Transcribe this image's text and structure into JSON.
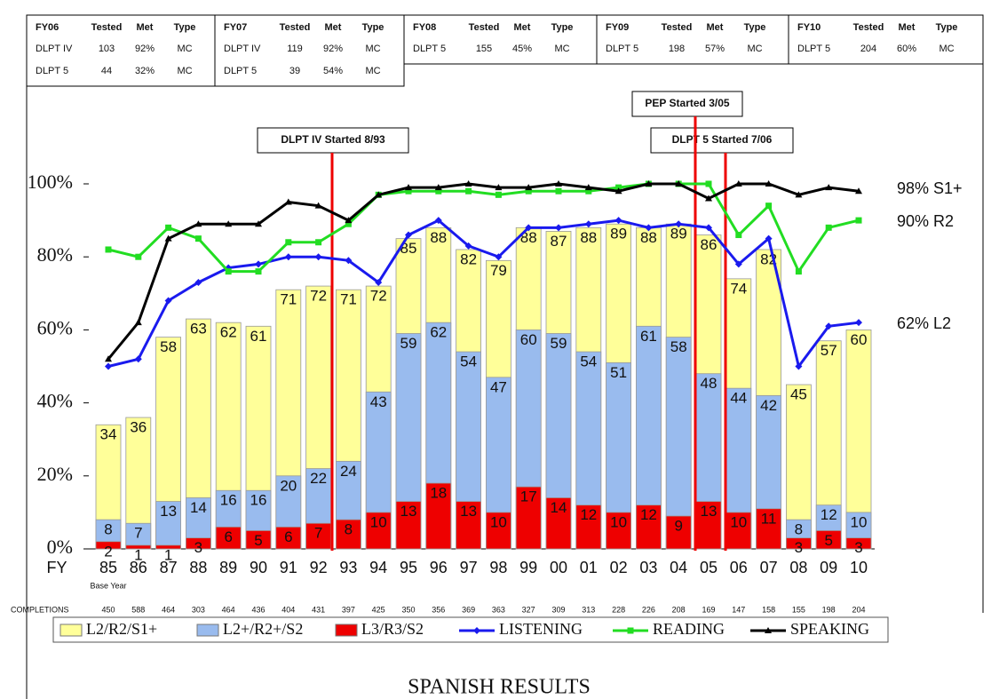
{
  "tables": [
    {
      "headers": [
        "FY06",
        "Tested",
        "Met",
        "Type"
      ],
      "rows": [
        [
          "DLPT IV",
          "103",
          "92%",
          "MC"
        ],
        [
          "DLPT 5",
          "44",
          "32%",
          "MC"
        ]
      ]
    },
    {
      "headers": [
        "FY07",
        "Tested",
        "Met",
        "Type"
      ],
      "rows": [
        [
          "DLPT IV",
          "119",
          "92%",
          "MC"
        ],
        [
          "DLPT 5",
          "39",
          "54%",
          "MC"
        ]
      ]
    },
    {
      "headers": [
        "FY08",
        "Tested",
        "Met",
        "Type"
      ],
      "rows": [
        [
          "DLPT 5",
          "155",
          "45%",
          "MC"
        ]
      ]
    },
    {
      "headers": [
        "FY09",
        "Tested",
        "Met",
        "Type"
      ],
      "rows": [
        [
          "DLPT 5",
          "198",
          "57%",
          "MC"
        ]
      ]
    },
    {
      "headers": [
        "FY10",
        "Tested",
        "Met",
        "Type"
      ],
      "rows": [
        [
          "DLPT 5",
          "204",
          "60%",
          "MC"
        ]
      ]
    }
  ],
  "chart_data": {
    "type": "bar",
    "title": "SPANISH RESULTS",
    "x_label": "FY",
    "base_year_note": "Base Year",
    "annotations": [
      "PEP Started 3/05",
      "DLPT IV Started 8/93",
      "DLPT 5 Started 7/06"
    ],
    "end_labels": [
      "98% S1+",
      "90% R2",
      "62% L2"
    ],
    "completions_label": "COMPLETIONS",
    "completions": [
      "450",
      "588",
      "464",
      "303",
      "464",
      "436",
      "404",
      "431",
      "397",
      "425",
      "350",
      "356",
      "369",
      "363",
      "327",
      "309",
      "313",
      "228",
      "226",
      "208",
      "169",
      "147",
      "158",
      "155",
      "198",
      "204"
    ],
    "categories": [
      "85",
      "86",
      "87",
      "88",
      "89",
      "90",
      "91",
      "92",
      "93",
      "94",
      "95",
      "96",
      "97",
      "98",
      "99",
      "00",
      "01",
      "02",
      "03",
      "04",
      "05",
      "06",
      "07",
      "08",
      "09",
      "10"
    ],
    "ylim": [
      0,
      100
    ],
    "yticks": [
      {
        "value": 0,
        "label": "0%"
      },
      {
        "value": 20,
        "label": "20%"
      },
      {
        "value": 40,
        "label": "40%"
      },
      {
        "value": 60,
        "label": "60%"
      },
      {
        "value": 80,
        "label": "80%"
      },
      {
        "value": 100,
        "label": "100%"
      }
    ],
    "series": [
      {
        "name": "L2/R2/S1+",
        "type": "bar",
        "color": "#ffff99",
        "values": [
          34,
          36,
          58,
          63,
          62,
          61,
          71,
          72,
          71,
          72,
          85,
          88,
          82,
          79,
          88,
          87,
          88,
          89,
          88,
          89,
          86,
          74,
          82,
          45,
          57,
          60
        ]
      },
      {
        "name": "L2+/R2+/S2",
        "type": "bar",
        "color": "#99bbee",
        "values": [
          8,
          7,
          13,
          14,
          16,
          16,
          20,
          22,
          24,
          43,
          59,
          62,
          54,
          47,
          60,
          59,
          54,
          51,
          61,
          58,
          48,
          44,
          42,
          8,
          12,
          10
        ]
      },
      {
        "name": "L3/R3/S2",
        "type": "bar",
        "color": "#ee0000",
        "values": [
          2,
          1,
          1,
          3,
          6,
          5,
          6,
          7,
          8,
          10,
          13,
          18,
          13,
          10,
          17,
          14,
          12,
          10,
          12,
          9,
          13,
          10,
          11,
          3,
          5,
          3
        ]
      },
      {
        "name": "LISTENING",
        "type": "line",
        "marker": "diamond",
        "color": "#1a1aee",
        "values": [
          50,
          52,
          68,
          73,
          77,
          78,
          80,
          80,
          79,
          73,
          86,
          90,
          83,
          80,
          88,
          88,
          89,
          90,
          88,
          89,
          88,
          78,
          85,
          50,
          61,
          62
        ]
      },
      {
        "name": "READING",
        "type": "line",
        "marker": "square",
        "color": "#22dd22",
        "values": [
          82,
          80,
          88,
          85,
          76,
          76,
          84,
          84,
          89,
          97,
          98,
          98,
          98,
          97,
          98,
          98,
          98,
          99,
          100,
          100,
          100,
          86,
          94,
          76,
          88,
          90
        ]
      },
      {
        "name": "SPEAKING",
        "type": "line",
        "marker": "triangle",
        "color": "#000000",
        "values": [
          52,
          62,
          85,
          89,
          89,
          89,
          95,
          94,
          90,
          97,
          99,
          99,
          100,
          99,
          99,
          100,
          99,
          98,
          100,
          100,
          96,
          100,
          100,
          97,
          99,
          98
        ]
      }
    ]
  }
}
